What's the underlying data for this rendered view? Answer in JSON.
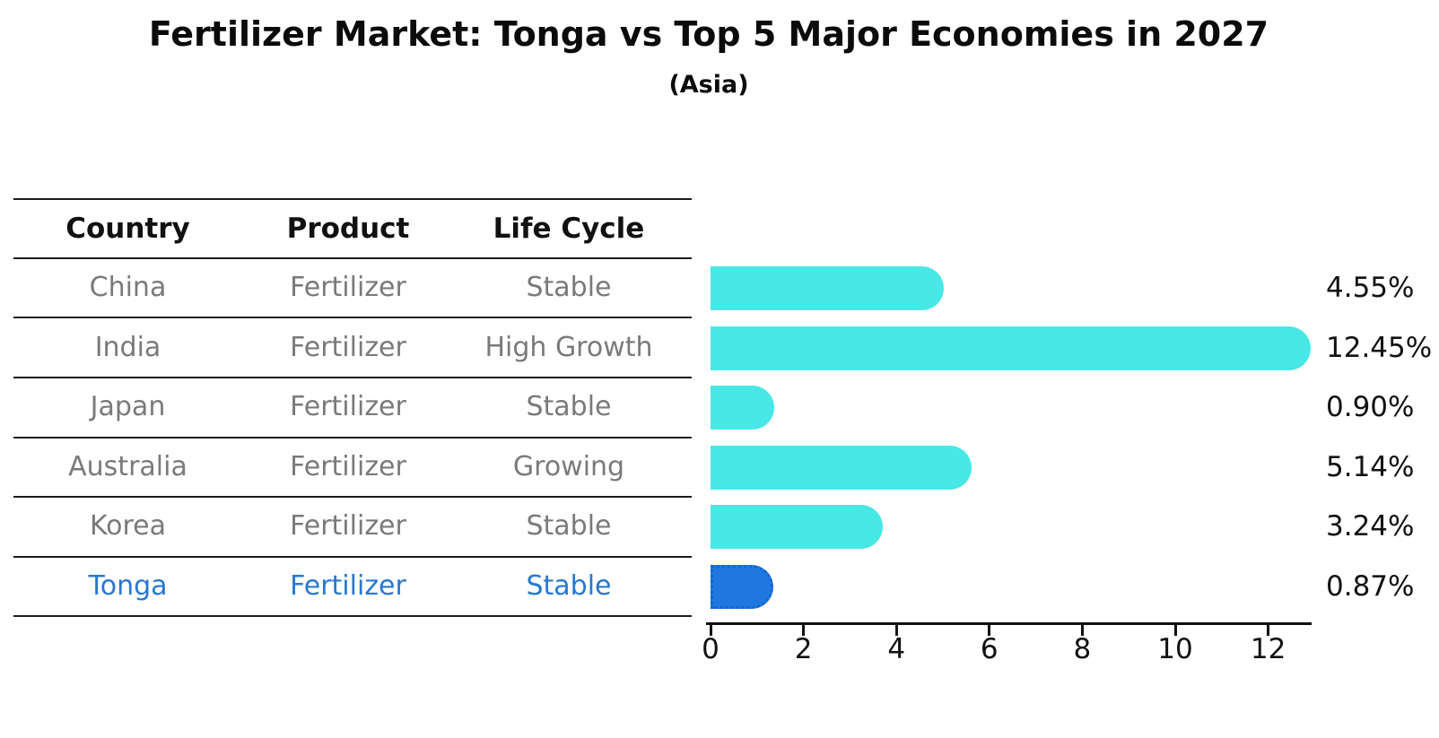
{
  "title": "Fertilizer Market: Tonga vs Top 5 Major Economies in 2027",
  "subtitle": "(Asia)",
  "table": {
    "headers": [
      "Country",
      "Product",
      "Life Cycle"
    ],
    "rows": [
      {
        "country": "China",
        "product": "Fertilizer",
        "life_cycle": "Stable",
        "highlight": false
      },
      {
        "country": "India",
        "product": "Fertilizer",
        "life_cycle": "High Growth",
        "highlight": false
      },
      {
        "country": "Japan",
        "product": "Fertilizer",
        "life_cycle": "Stable",
        "highlight": false
      },
      {
        "country": "Australia",
        "product": "Fertilizer",
        "life_cycle": "Growing",
        "highlight": false
      },
      {
        "country": "Korea",
        "product": "Fertilizer",
        "life_cycle": "Stable",
        "highlight": false
      },
      {
        "country": "Tonga",
        "product": "Fertilizer",
        "life_cycle": "Stable",
        "highlight": true
      }
    ]
  },
  "chart_data": {
    "type": "bar",
    "orientation": "horizontal",
    "title": "Fertilizer Market: Tonga vs Top 5 Major Economies in 2027",
    "subtitle": "(Asia)",
    "categories": [
      "China",
      "India",
      "Japan",
      "Australia",
      "Korea",
      "Tonga"
    ],
    "values": [
      4.55,
      12.45,
      0.9,
      5.14,
      3.24,
      0.87
    ],
    "value_labels": [
      "4.55%",
      "12.45%",
      "0.90%",
      "5.14%",
      "3.24%",
      "0.87%"
    ],
    "x_ticks": [
      0,
      2,
      4,
      6,
      8,
      10,
      12
    ],
    "xlim": [
      0,
      12.9
    ],
    "grid": false,
    "legend": false,
    "highlight_index": 5
  },
  "colors": {
    "bar_default": "#47E8E6",
    "bar_highlight": "#1E78E0",
    "bar_highlight_border": "#1465CE",
    "highlight_text": "#2878D0",
    "header_text": "#111111",
    "cell_text": "#7A7A7A",
    "label_text": "#111111",
    "line": "#1C1C1C",
    "background": "#FFFFFF"
  }
}
